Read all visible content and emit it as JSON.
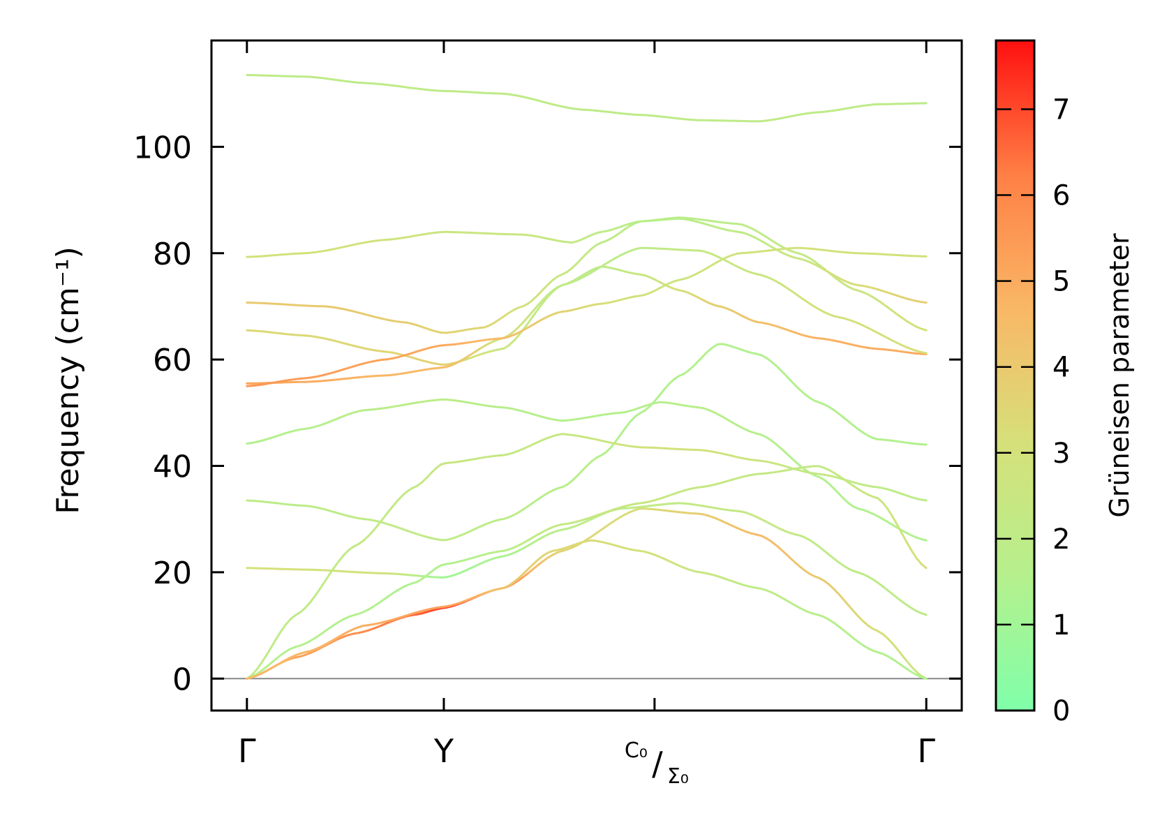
{
  "chart_data": {
    "type": "line",
    "title": "",
    "xlabel": "",
    "ylabel": "Frequency (cm⁻¹)",
    "ylim": [
      -6,
      120
    ],
    "yticks": [
      0,
      20,
      40,
      60,
      80,
      100
    ],
    "grid": false,
    "x_ticks": [
      {
        "pos": 0,
        "label": "Γ",
        "kind": "plain"
      },
      {
        "pos": 1,
        "label": "Y",
        "kind": "plain"
      },
      {
        "pos": 2.07,
        "label": "C₀",
        "label2": "Σ₀",
        "kind": "split"
      },
      {
        "pos": 3.45,
        "label": "Γ",
        "kind": "plain"
      }
    ],
    "xlim": [
      -0.18,
      3.63
    ],
    "colorbar": {
      "label": "Grüneisen parameter",
      "range": [
        0,
        7.8
      ],
      "ticks": [
        0,
        1,
        2,
        3,
        4,
        5,
        6,
        7
      ],
      "colors": [
        "#80ffaa",
        "#b5f08d",
        "#d6e07a",
        "#f9b766",
        "#ff7f45",
        "#ff1010"
      ]
    },
    "series": [
      {
        "x": [
          0,
          0.3,
          0.6,
          1.0,
          1.3,
          1.7,
          2.0,
          2.3,
          2.6,
          2.9,
          3.2,
          3.45
        ],
        "y": [
          113.5,
          113.2,
          112,
          110.5,
          110,
          107,
          106,
          105,
          104.8,
          106.5,
          108,
          108.2
        ],
        "g": [
          2,
          2,
          2,
          2,
          2,
          2,
          2,
          2,
          2,
          2,
          2,
          2
        ]
      },
      {
        "x": [
          0,
          0.3,
          0.7,
          1.0,
          1.4,
          1.65,
          1.8,
          2.0,
          2.2,
          2.5,
          2.8,
          3.1,
          3.45
        ],
        "y": [
          79.3,
          80,
          82.5,
          84,
          83.5,
          82,
          84,
          86,
          86.7,
          85.5,
          80,
          73,
          65.5
        ],
        "g": [
          3,
          3,
          2.8,
          2.6,
          2.5,
          2.3,
          2.0,
          1.8,
          1.8,
          1.9,
          2.2,
          2.6,
          3
        ]
      },
      {
        "x": [
          0,
          0.4,
          0.8,
          1.0,
          1.2,
          1.4,
          1.6,
          1.8,
          2.0,
          2.2,
          2.5,
          2.8,
          3.1,
          3.45
        ],
        "y": [
          70.7,
          70,
          67,
          65,
          66,
          70,
          76,
          82,
          86,
          86.5,
          84,
          79,
          74,
          70.7
        ],
        "g": [
          4,
          4,
          3.8,
          3.6,
          3.5,
          3.0,
          2.5,
          2.0,
          1.8,
          1.8,
          2.0,
          2.5,
          3.2,
          3.8
        ]
      },
      {
        "x": [
          0,
          0.3,
          0.7,
          1.0,
          1.3,
          1.6,
          1.8,
          2.0,
          2.2,
          2.4,
          2.6,
          2.9,
          3.2,
          3.45
        ],
        "y": [
          65.5,
          64.5,
          61.5,
          59,
          62,
          74,
          77.5,
          76,
          73,
          70,
          67,
          64,
          62,
          61
        ],
        "g": [
          3.4,
          3.4,
          3.5,
          3.7,
          2.5,
          2.0,
          2.0,
          2.5,
          3.2,
          3.8,
          4.3,
          4.8,
          5.0,
          5.0
        ]
      },
      {
        "x": [
          0,
          0.3,
          0.7,
          1.0,
          1.3,
          1.6,
          2.0,
          2.3,
          2.6,
          3.0,
          3.45
        ],
        "y": [
          55.5,
          55.8,
          57,
          58.5,
          64,
          74,
          81,
          80.5,
          76,
          68,
          61.2
        ],
        "g": [
          5.2,
          5,
          4.7,
          4.5,
          3.0,
          2.0,
          2.0,
          2.3,
          2.6,
          3.0,
          3.2
        ]
      },
      {
        "x": [
          0,
          0.3,
          0.7,
          1.0,
          1.3,
          1.6,
          1.8,
          2.0,
          2.2,
          2.5,
          2.8,
          3.1,
          3.45
        ],
        "y": [
          55,
          56.5,
          60,
          62.7,
          64,
          69,
          70.5,
          72,
          75,
          80,
          81,
          80,
          79.4
        ],
        "g": [
          5.6,
          5.4,
          5.2,
          5.0,
          4.4,
          3.6,
          3.2,
          2.9,
          2.7,
          2.8,
          2.9,
          3.0,
          3.0
        ]
      },
      {
        "x": [
          0,
          0.3,
          0.6,
          1.0,
          1.3,
          1.6,
          1.9,
          2.1,
          2.3,
          2.6,
          2.9,
          3.1,
          3.45
        ],
        "y": [
          44.2,
          47,
          50.5,
          52.5,
          51,
          48.5,
          50,
          52,
          51,
          46,
          38,
          32,
          26
        ],
        "g": [
          1.5,
          1.6,
          1.8,
          1.9,
          1.7,
          1.6,
          1.6,
          1.7,
          1.7,
          1.6,
          1.5,
          1.5,
          1.5
        ]
      },
      {
        "x": [
          0,
          0.3,
          0.6,
          1.0,
          1.3,
          1.6,
          1.8,
          2.0,
          2.2,
          2.4,
          2.6,
          2.9,
          3.2,
          3.45
        ],
        "y": [
          33.5,
          32.5,
          30,
          26,
          30,
          36,
          42,
          50,
          57,
          63,
          61,
          52,
          45,
          44
        ],
        "g": [
          1.9,
          1.9,
          2.0,
          2.1,
          1.9,
          1.7,
          1.6,
          1.5,
          1.5,
          1.5,
          1.5,
          1.5,
          1.5,
          1.5
        ]
      },
      {
        "x": [
          0,
          0.3,
          0.7,
          1.0,
          1.3,
          1.6,
          1.9,
          2.2,
          2.5,
          2.8,
          3.1,
          3.45
        ],
        "y": [
          20.8,
          20.5,
          19.8,
          19,
          23,
          28,
          32,
          33,
          31.5,
          27,
          20,
          12
        ],
        "g": [
          3.1,
          3.0,
          2.8,
          1.0,
          1.3,
          1.8,
          2.0,
          2.2,
          2.3,
          2.2,
          2.0,
          2.0
        ]
      },
      {
        "x": [
          0,
          0.25,
          0.55,
          0.85,
          1.0,
          1.3,
          1.6,
          2.0,
          2.3,
          2.6,
          2.9,
          3.2,
          3.45
        ],
        "y": [
          0,
          12,
          25,
          36,
          40.5,
          42,
          46,
          43.5,
          43,
          41,
          38.5,
          36,
          33.5
        ],
        "g": [
          2.0,
          2.1,
          2.2,
          2.3,
          2.5,
          2.3,
          2.4,
          2.8,
          2.9,
          2.6,
          2.3,
          2.0,
          1.9
        ]
      },
      {
        "x": [
          0,
          0.25,
          0.55,
          0.85,
          1.0,
          1.3,
          1.6,
          2.0,
          2.3,
          2.6,
          2.9,
          3.2,
          3.45
        ],
        "y": [
          0,
          6,
          12,
          18,
          21.5,
          24,
          29,
          33,
          36,
          38.5,
          40,
          34,
          20.8
        ],
        "g": [
          1.6,
          1.6,
          1.5,
          1.4,
          1.4,
          1.8,
          2.3,
          2.5,
          2.4,
          2.2,
          2.2,
          2.5,
          3.2
        ]
      },
      {
        "x": [
          0,
          0.25,
          0.55,
          0.85,
          1.0,
          1.3,
          1.6,
          2.0,
          2.3,
          2.6,
          2.9,
          3.2,
          3.45
        ],
        "y": [
          0,
          4,
          8.5,
          12,
          13.3,
          17,
          24,
          32,
          31,
          27,
          19,
          9,
          0
        ],
        "g": [
          4.8,
          5.2,
          5.8,
          6.6,
          7.2,
          5.8,
          3.6,
          3.2,
          3.8,
          4.5,
          4.0,
          3.2,
          2.5
        ]
      },
      {
        "x": [
          0,
          0.3,
          0.6,
          1.0,
          1.3,
          1.55,
          1.75,
          2.0,
          2.3,
          2.6,
          2.9,
          3.2,
          3.45
        ],
        "y": [
          0,
          5,
          10,
          13.5,
          17,
          24,
          26,
          24,
          20,
          17,
          12,
          5,
          0
        ],
        "g": [
          4.6,
          4.7,
          4.9,
          5.4,
          4.2,
          3.4,
          3.3,
          3.0,
          2.5,
          2.0,
          1.7,
          1.5,
          1.5
        ]
      }
    ]
  }
}
